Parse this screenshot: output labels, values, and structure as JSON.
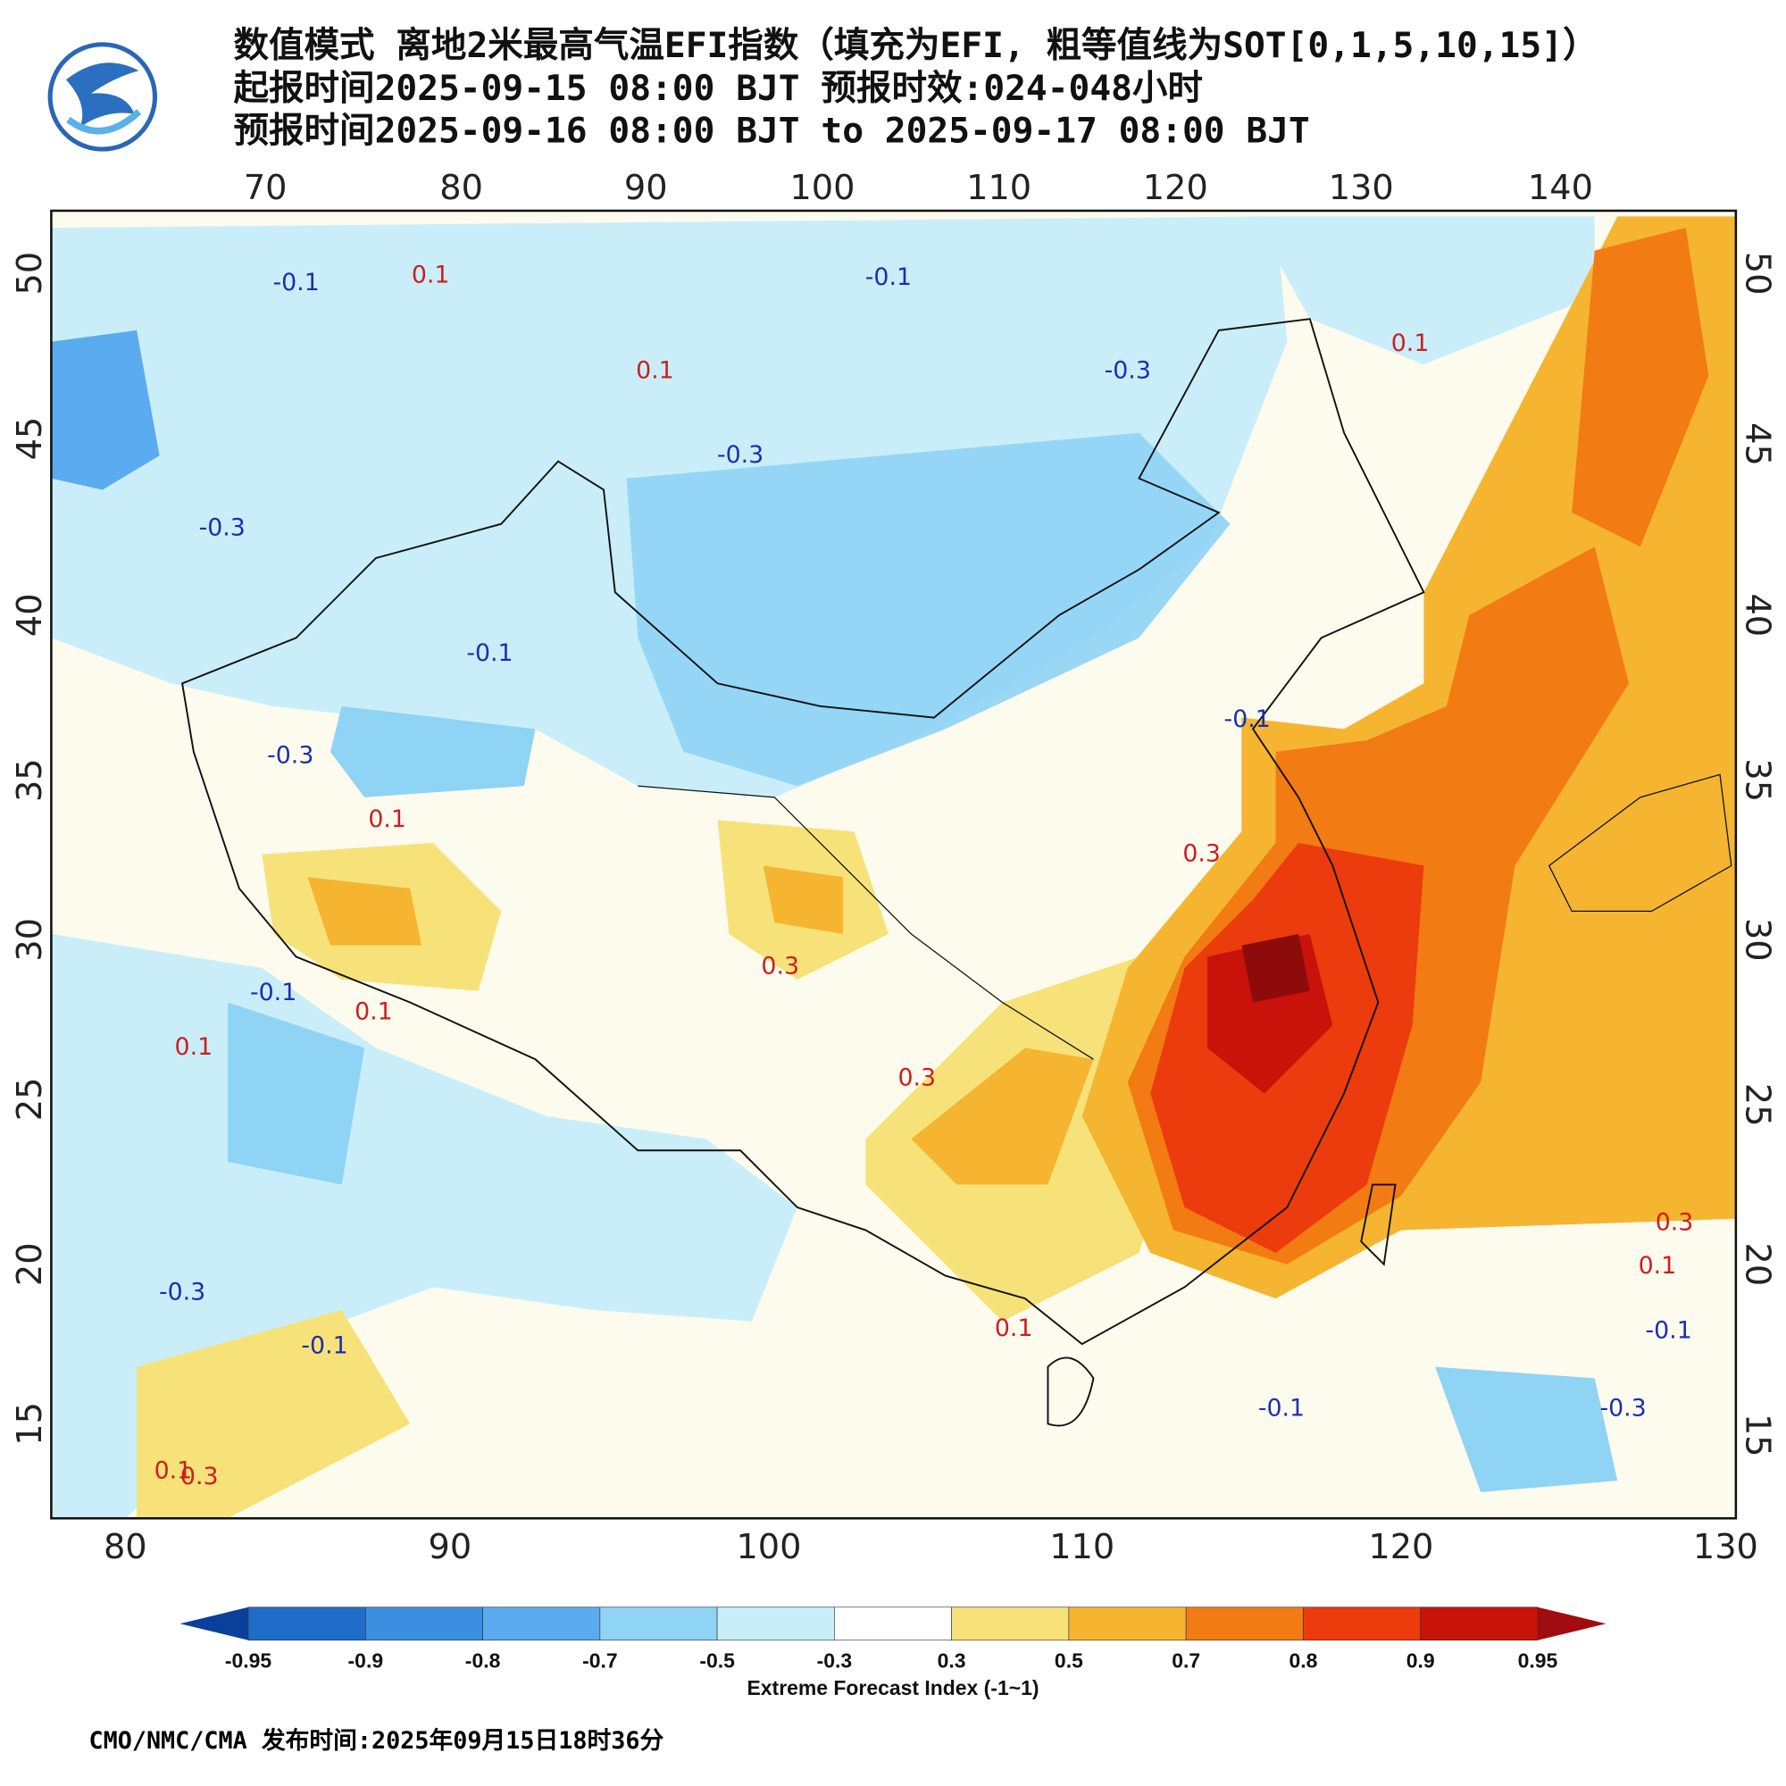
{
  "header": {
    "title_lines": [
      "数值模式 离地2米最高气温EFI指数（填充为EFI, 粗等值线为SOT[0,1,5,10,15]）",
      "起报时间2025-09-15 08:00 BJT 预报时效:024-048小时",
      "预报时间2025-09-16 08:00 BJT to 2025-09-17 08:00 BJT"
    ]
  },
  "map": {
    "top_lon_labels": [
      70,
      80,
      90,
      100,
      110,
      120,
      130,
      140
    ],
    "bottom_lon_labels": [
      80,
      90,
      100,
      110,
      120,
      130
    ],
    "left_lat_labels": [
      50,
      45,
      40,
      35,
      30,
      25,
      20,
      15
    ],
    "right_lat_labels": [
      50,
      45,
      40,
      35,
      30,
      25,
      20,
      15
    ],
    "contour_labels": [
      {
        "label": "-0.1",
        "color": "#1a2fb0"
      },
      {
        "label": "0.1",
        "color": "#cc1f1f"
      },
      {
        "label": "-0.1",
        "color": "#1a2fb0"
      },
      {
        "label": "0.1",
        "color": "#cc1f1f"
      },
      {
        "label": "-0.3",
        "color": "#1a2fb0"
      },
      {
        "label": "0.1",
        "color": "#cc1f1f"
      },
      {
        "label": "-0.3",
        "color": "#1a2fb0"
      },
      {
        "label": "-0.3",
        "color": "#1a2fb0"
      },
      {
        "label": "-0.1",
        "color": "#1a2fb0"
      },
      {
        "label": "0.3",
        "color": "#cc1f1f"
      },
      {
        "label": "0.1",
        "color": "#cc1f1f"
      },
      {
        "label": "-0.3",
        "color": "#1a2fb0"
      },
      {
        "label": "0.1",
        "color": "#cc1f1f"
      },
      {
        "label": "-0.1",
        "color": "#1a2fb0"
      },
      {
        "label": "0.1",
        "color": "#cc1f1f"
      },
      {
        "label": "0.3",
        "color": "#cc1f1f"
      },
      {
        "label": "0.3",
        "color": "#cc1f1f"
      },
      {
        "label": "-0.3",
        "color": "#1a2fb0"
      },
      {
        "label": "-0.1",
        "color": "#1a2fb0"
      },
      {
        "label": "0.3",
        "color": "#cc1f1f"
      },
      {
        "label": "0.1",
        "color": "#cc1f1f"
      },
      {
        "label": "-0.1",
        "color": "#1a2fb0"
      },
      {
        "label": "-0.1",
        "color": "#1a2fb0"
      },
      {
        "label": "-0.3",
        "color": "#1a2fb0"
      },
      {
        "label": "0.1",
        "color": "#cc1f1f"
      },
      {
        "label": "0.3",
        "color": "#cc1f1f"
      },
      {
        "label": "-0.1",
        "color": "#1a2fb0"
      },
      {
        "label": "0.1",
        "color": "#cc1f1f"
      }
    ]
  },
  "colorbar": {
    "ticks": [
      -0.95,
      -0.9,
      -0.8,
      -0.7,
      -0.5,
      -0.3,
      0.3,
      0.5,
      0.7,
      0.8,
      0.9,
      0.95
    ],
    "colors": [
      "#0a3f9c",
      "#1f6dc8",
      "#3b8ee0",
      "#5aabef",
      "#8fd3f5",
      "#c9eefa",
      "#ffffff",
      "#f7e27a",
      "#f5b531",
      "#f27b13",
      "#ec3b0c",
      "#c8120a",
      "#a00c10"
    ],
    "title": "Extreme Forecast Index (-1~1)"
  },
  "footer": "CMO/NMC/CMA 发布时间:2025年09月15日18时36分"
}
